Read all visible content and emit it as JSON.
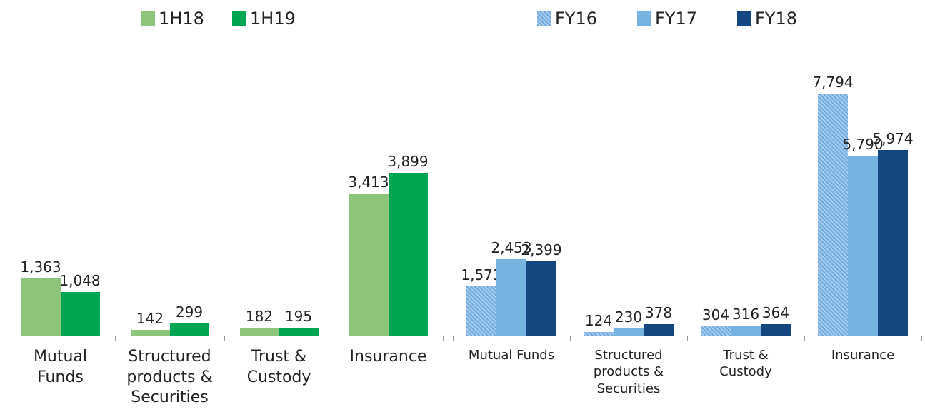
{
  "chart_data": [
    {
      "type": "bar",
      "categories": [
        "Mutual Funds",
        "Structured products & Securities",
        "Trust & Custody",
        "Insurance"
      ],
      "series": [
        {
          "name": "1H18",
          "color": "#8dc57a",
          "values": [
            1363,
            142,
            182,
            3413
          ],
          "value_labels": [
            "1,363",
            "142",
            "182",
            "3,413"
          ]
        },
        {
          "name": "1H19",
          "color": "#00a651",
          "values": [
            1048,
            299,
            195,
            3899
          ],
          "value_labels": [
            "1,048",
            "299",
            "195",
            "3,899"
          ]
        }
      ],
      "ylim": [
        0,
        4500
      ]
    },
    {
      "type": "bar",
      "categories": [
        "Mutual Funds",
        "Structured products & Securities",
        "Trust & Custody",
        "Insurance"
      ],
      "series": [
        {
          "name": "FY16",
          "color": "#a9cfee",
          "pattern": "crosshatch",
          "values": [
            1573,
            124,
            304,
            7794
          ],
          "value_labels": [
            "1,573",
            "124",
            "304",
            "7,794"
          ]
        },
        {
          "name": "FY17",
          "color": "#77b3e1",
          "values": [
            2453,
            230,
            316,
            5790
          ],
          "value_labels": [
            "2,453",
            "230",
            "316",
            "5,790"
          ]
        },
        {
          "name": "FY18",
          "color": "#14467f",
          "values": [
            2399,
            378,
            364,
            5974
          ],
          "value_labels": [
            "2,399",
            "378",
            "364",
            "5,974"
          ]
        }
      ],
      "ylim": [
        0,
        9000
      ]
    }
  ]
}
